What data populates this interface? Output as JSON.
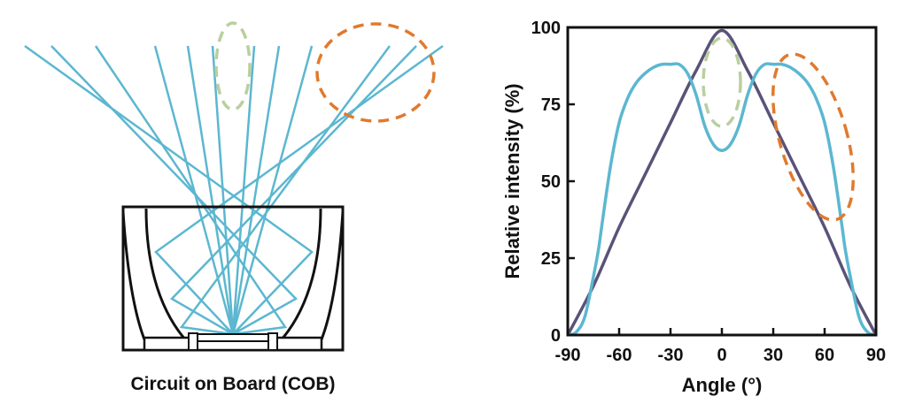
{
  "left_diagram": {
    "caption": "Circuit on Board (COB)"
  },
  "chart_data": {
    "type": "line",
    "xlabel": "Angle (°)",
    "ylabel": "Relative intensity (%)",
    "xlim": [
      -90,
      90
    ],
    "ylim": [
      0,
      100
    ],
    "x_ticks": [
      "-90",
      "-60",
      "-30",
      "0",
      "30",
      "60",
      "90"
    ],
    "y_ticks": [
      "0",
      "25",
      "50",
      "75",
      "100"
    ],
    "grid": false,
    "series": [
      {
        "color": "#5a5278",
        "x": [
          -90,
          -75,
          -60,
          -45,
          -30,
          -15,
          0,
          15,
          30,
          45,
          60,
          75,
          90
        ],
        "y": [
          0,
          16,
          35,
          52,
          69,
          86,
          99,
          86,
          69,
          52,
          35,
          16,
          0
        ]
      },
      {
        "color": "#5cb7d0",
        "x": [
          -90,
          -85,
          -80,
          -75,
          -72,
          -70,
          -65,
          -60,
          -55,
          -50,
          -45,
          -40,
          -35,
          -30,
          -25,
          -20,
          -15,
          -10,
          -5,
          0,
          5,
          10,
          15,
          20,
          25,
          30,
          35,
          40,
          45,
          50,
          55,
          60,
          65,
          70,
          72,
          75,
          80,
          85,
          90
        ],
        "y": [
          0,
          1,
          6,
          19,
          28,
          36,
          55,
          69,
          77,
          82,
          85,
          87,
          88,
          88,
          88,
          85,
          78,
          68,
          62,
          60,
          62,
          68,
          78,
          85,
          88,
          88,
          88,
          87,
          85,
          82,
          77,
          69,
          55,
          36,
          28,
          19,
          6,
          1,
          0
        ]
      }
    ],
    "highlight_colors": [
      "#b9cf9f",
      "#e07a2e"
    ]
  }
}
